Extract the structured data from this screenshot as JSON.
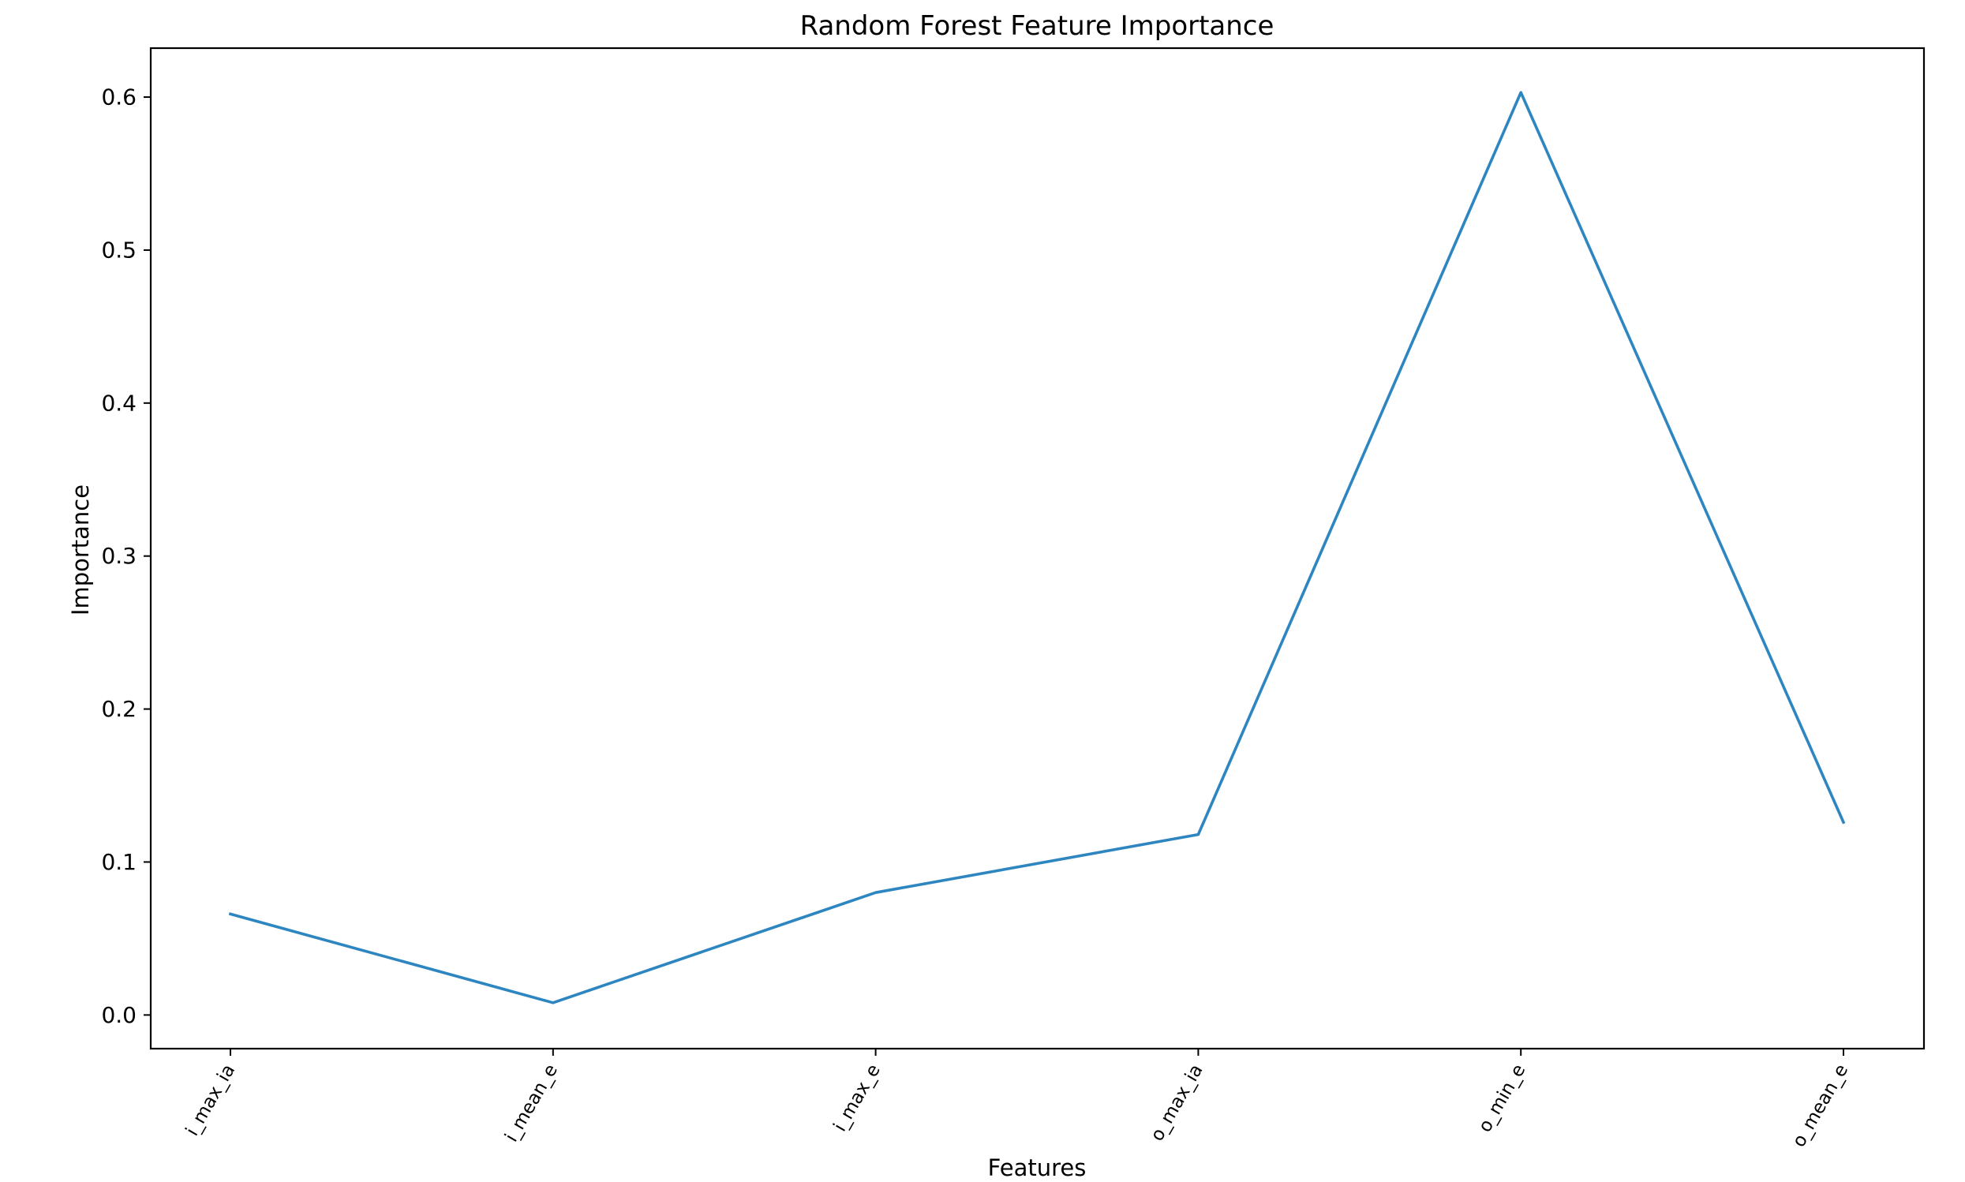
{
  "chart_data": {
    "type": "line",
    "title": "Random Forest Feature Importance",
    "xlabel": "Features",
    "ylabel": "Importance",
    "categories": [
      "i_max_ia",
      "i_mean_e",
      "i_max_e",
      "o_max_ia",
      "o_min_e",
      "o_mean_e"
    ],
    "series": [
      {
        "values": [
          0.066,
          0.008,
          0.08,
          0.118,
          0.603,
          0.126
        ],
        "color": "#2e86c1"
      }
    ],
    "ylim": [
      -0.022,
      0.632
    ],
    "yticks": [
      0.0,
      0.1,
      0.2,
      0.3,
      0.4,
      0.5,
      0.6
    ],
    "ytick_labels": [
      "0.0",
      "0.1",
      "0.2",
      "0.3",
      "0.4",
      "0.5",
      "0.6"
    ],
    "xtick_rotation": 60,
    "grid": false,
    "legend": "none"
  }
}
